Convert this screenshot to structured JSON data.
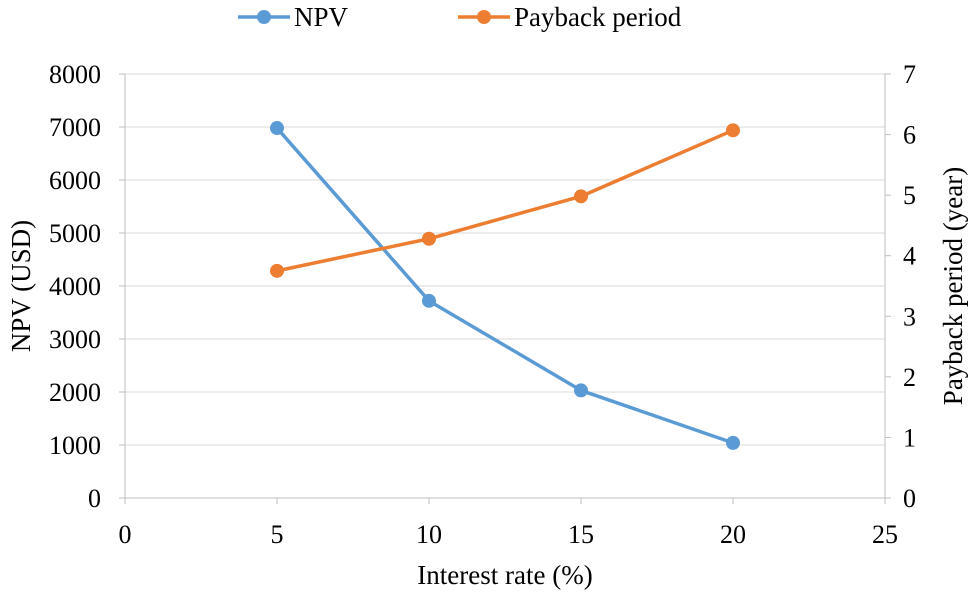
{
  "chart_data": {
    "type": "line",
    "x": [
      5,
      10,
      15,
      20
    ],
    "xlabel": "Interest rate (%)",
    "ylabel": "NPV (USD)",
    "y2label": "Payback period (year)",
    "xlim": [
      0,
      25
    ],
    "xticks": [
      0,
      5,
      10,
      15,
      20,
      25
    ],
    "ylim": [
      0,
      8000
    ],
    "yticks": [
      0,
      1000,
      2000,
      3000,
      4000,
      5000,
      6000,
      7000,
      8000
    ],
    "y2lim": [
      0,
      7
    ],
    "y2ticks": [
      0,
      1,
      2,
      3,
      4,
      5,
      6,
      7
    ],
    "grid": true,
    "legend_position": "top-center",
    "series": [
      {
        "name": "NPV",
        "axis": "left",
        "color": "#5B9BD5",
        "values": [
          6980,
          3720,
          2030,
          1040
        ]
      },
      {
        "name": "Payback period",
        "axis": "right",
        "color": "#ED7D31",
        "values": [
          3.75,
          4.28,
          4.98,
          6.07
        ]
      }
    ]
  }
}
